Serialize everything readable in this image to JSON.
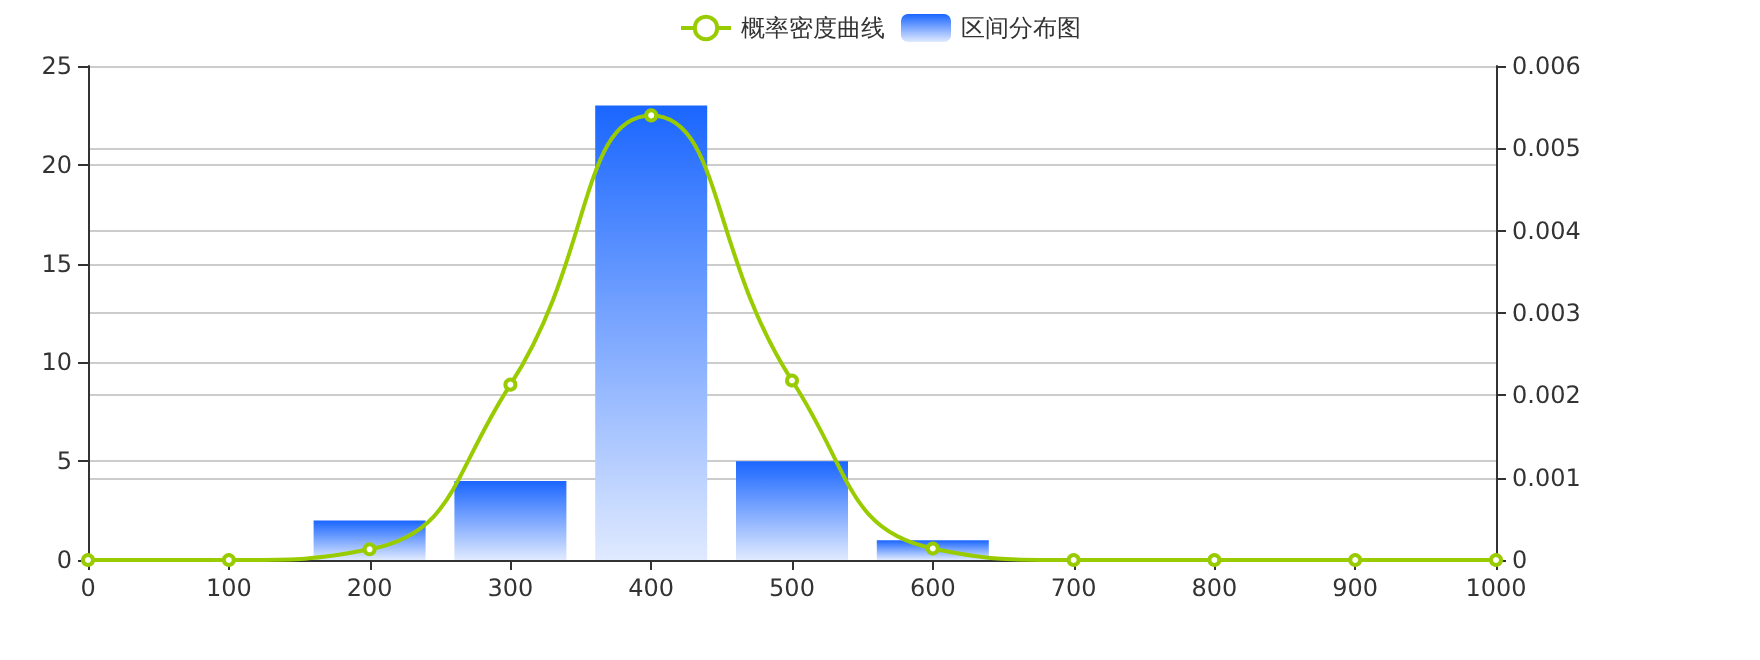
{
  "chart_data": {
    "type": "bar",
    "series": [
      {
        "name": "概率密度曲线",
        "type": "line",
        "axis": "y2",
        "color": "#99cc00",
        "x": [
          0,
          100,
          200,
          300,
          400,
          500,
          600,
          700,
          800,
          900,
          1000
        ],
        "values": [
          0,
          0,
          0.00013,
          0.00213,
          0.0054,
          0.00218,
          0.00014,
          0,
          0,
          0,
          0
        ]
      },
      {
        "name": "区间分布图",
        "color": "#1a66ff",
        "x": [
          200,
          300,
          400,
          500,
          600
        ],
        "values": [
          2,
          4,
          23,
          5,
          1
        ]
      }
    ],
    "xlim": [
      0,
      1000
    ],
    "xticks": [
      0,
      100,
      200,
      300,
      400,
      500,
      600,
      700,
      800,
      900,
      1000
    ],
    "ylim": [
      0,
      25
    ],
    "yticks": [
      0,
      5,
      10,
      15,
      20,
      25
    ],
    "y2lim": [
      0,
      0.006
    ],
    "y2ticks": [
      0,
      0.001,
      0.002,
      0.003,
      0.004,
      0.005,
      0.006
    ],
    "grid": "y",
    "legend": "top",
    "marker": "circle"
  }
}
